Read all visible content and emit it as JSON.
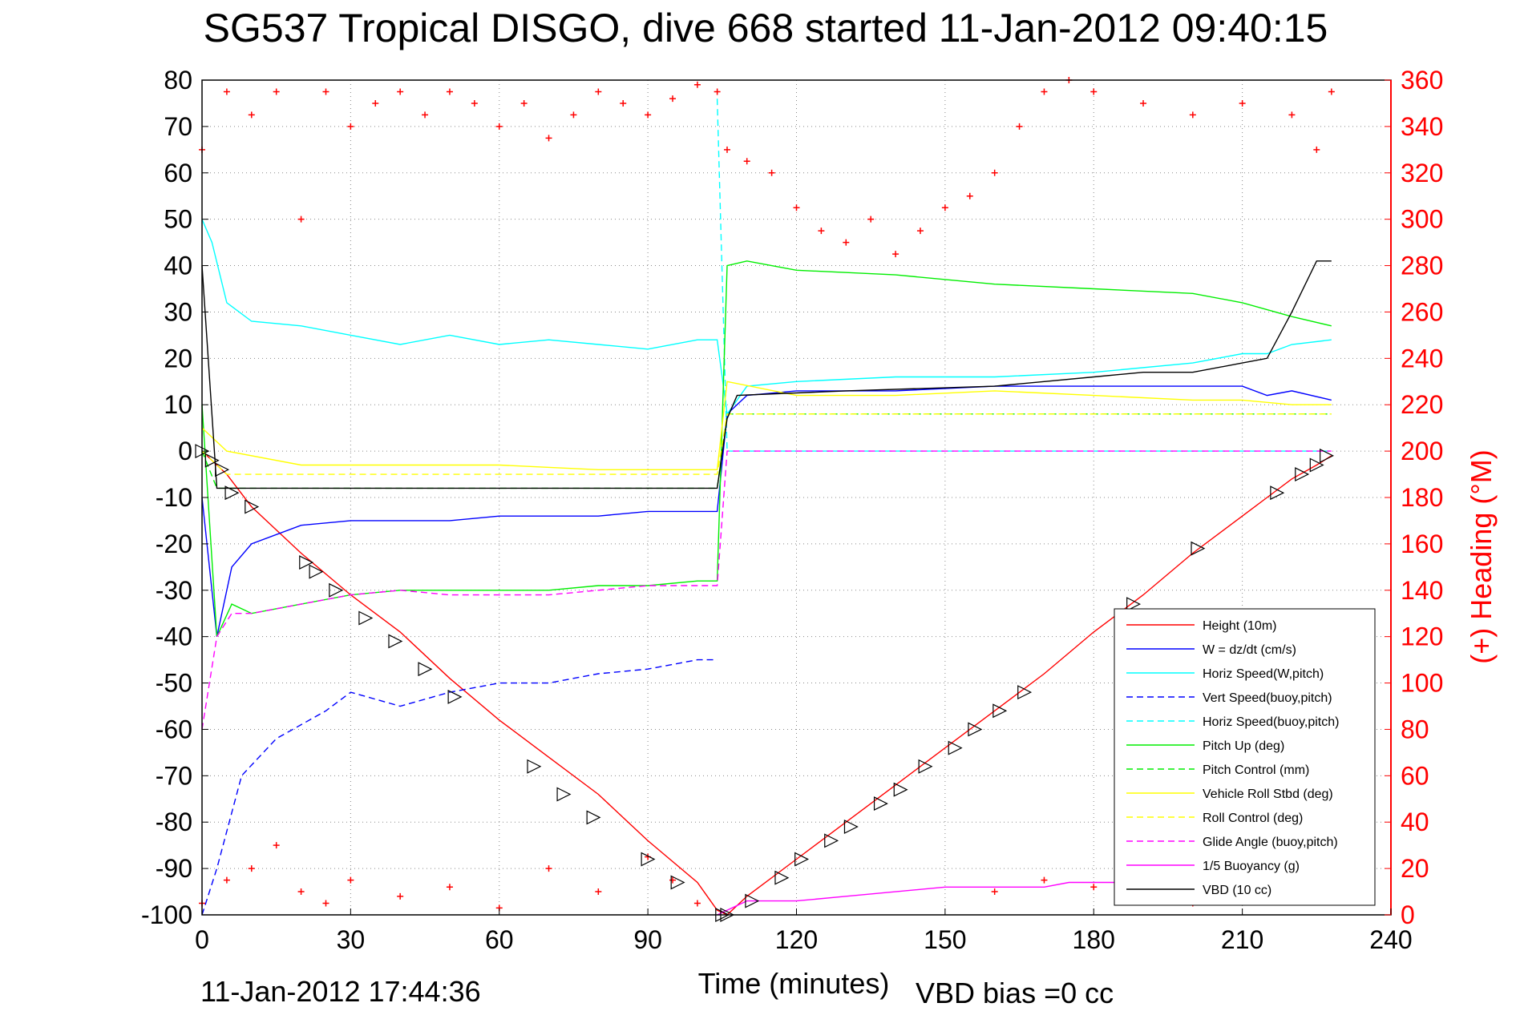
{
  "title": "SG537 Tropical DISGO, dive 668 started 11-Jan-2012 09:40:15",
  "footer_left": "11-Jan-2012 17:44:36",
  "footer_right": "VBD bias =0 cc",
  "chart_data": {
    "type": "line",
    "xlabel": "Time (minutes)",
    "ylabel": "",
    "y2label": "(+) Heading (°M)",
    "xlim": [
      0,
      240
    ],
    "ylim": [
      -100,
      80
    ],
    "y2lim": [
      0,
      360
    ],
    "xticks": [
      0,
      30,
      60,
      90,
      120,
      150,
      180,
      210,
      240
    ],
    "yticks": [
      80,
      70,
      60,
      50,
      40,
      30,
      20,
      10,
      0,
      -10,
      -20,
      -30,
      -40,
      -50,
      -60,
      -70,
      -80,
      -90,
      -100
    ],
    "y2ticks": [
      360,
      340,
      320,
      300,
      280,
      260,
      240,
      220,
      200,
      180,
      160,
      140,
      120,
      100,
      80,
      60,
      40,
      20,
      0
    ],
    "grid": true,
    "legend_position": "bottom-right",
    "colors": {
      "red": "#ff0000",
      "blue": "#0000ff",
      "cyan": "#00ffff",
      "green": "#00ee00",
      "yellow": "#ffff00",
      "magenta": "#ff00ff",
      "black": "#000000"
    },
    "series": [
      {
        "name": "Height (10m)",
        "color": "#ff0000",
        "dash": false,
        "x": [
          0,
          5,
          10,
          20,
          30,
          40,
          50,
          60,
          70,
          80,
          90,
          100,
          104,
          106,
          110,
          120,
          130,
          140,
          150,
          160,
          170,
          180,
          190,
          200,
          210,
          215,
          220,
          225,
          228
        ],
        "y": [
          0,
          -5,
          -12,
          -22,
          -31,
          -39,
          -49,
          -58,
          -66,
          -74,
          -84,
          -93,
          -99,
          -100,
          -96,
          -88,
          -80,
          -72,
          -64,
          -56,
          -48,
          -39,
          -31,
          -22,
          -14,
          -10,
          -6,
          -3,
          -1
        ]
      },
      {
        "name": "W = dz/dt (cm/s)",
        "color": "#0000ff",
        "dash": false,
        "x": [
          0,
          3,
          6,
          10,
          20,
          30,
          40,
          50,
          60,
          70,
          80,
          90,
          100,
          104,
          106,
          110,
          120,
          140,
          160,
          180,
          200,
          210,
          215,
          220,
          228
        ],
        "y": [
          -10,
          -40,
          -25,
          -20,
          -16,
          -15,
          -15,
          -15,
          -14,
          -14,
          -14,
          -13,
          -13,
          -13,
          8,
          12,
          13,
          13,
          14,
          14,
          14,
          14,
          12,
          13,
          11
        ]
      },
      {
        "name": "Horiz Speed(W,pitch)",
        "color": "#00ffff",
        "dash": false,
        "x": [
          0,
          2,
          5,
          10,
          20,
          30,
          40,
          50,
          60,
          70,
          80,
          90,
          100,
          104,
          106,
          110,
          120,
          140,
          160,
          180,
          200,
          210,
          215,
          220,
          228
        ],
        "y": [
          50,
          45,
          32,
          28,
          27,
          25,
          23,
          25,
          23,
          24,
          23,
          22,
          24,
          24,
          8,
          14,
          15,
          16,
          16,
          17,
          19,
          21,
          21,
          23,
          24
        ]
      },
      {
        "name": "Vert Speed(buoy,pitch)",
        "color": "#0000ff",
        "dash": true,
        "x": [
          0,
          3,
          8,
          15,
          25,
          30,
          40,
          50,
          60,
          70,
          80,
          90,
          100,
          104
        ],
        "y": [
          -100,
          -90,
          -70,
          -62,
          -56,
          -52,
          -55,
          -52,
          -50,
          -50,
          -48,
          -47,
          -45,
          -45
        ]
      },
      {
        "name": "Horiz Speed(buoy,pitch)",
        "color": "#00ffff",
        "dash": true,
        "x": [
          104,
          106,
          228
        ],
        "y": [
          76,
          0,
          0
        ]
      },
      {
        "name": "Pitch Up (deg)",
        "color": "#00ee00",
        "dash": false,
        "x": [
          0,
          3,
          6,
          10,
          20,
          30,
          40,
          50,
          60,
          70,
          80,
          90,
          100,
          104,
          106,
          110,
          120,
          140,
          160,
          180,
          200,
          210,
          220,
          228
        ],
        "y": [
          10,
          -40,
          -33,
          -35,
          -33,
          -31,
          -30,
          -30,
          -30,
          -30,
          -29,
          -29,
          -28,
          -28,
          40,
          41,
          39,
          38,
          36,
          35,
          34,
          32,
          29,
          27
        ]
      },
      {
        "name": "Pitch Control (mm)",
        "color": "#00ee00",
        "dash": true,
        "x": [
          0,
          3,
          104,
          106,
          228
        ],
        "y": [
          0,
          -8,
          -8,
          8,
          8
        ]
      },
      {
        "name": "Vehicle Roll Stbd (deg)",
        "color": "#ffff00",
        "dash": false,
        "x": [
          0,
          5,
          20,
          40,
          60,
          80,
          100,
          104,
          106,
          120,
          140,
          160,
          180,
          200,
          210,
          220,
          228
        ],
        "y": [
          5,
          0,
          -3,
          -3,
          -3,
          -4,
          -4,
          -4,
          15,
          12,
          12,
          13,
          12,
          11,
          11,
          10,
          10
        ]
      },
      {
        "name": "Roll Control (deg)",
        "color": "#ffff00",
        "dash": true,
        "x": [
          0,
          5,
          104,
          106,
          228
        ],
        "y": [
          0,
          -5,
          -5,
          8,
          8
        ]
      },
      {
        "name": "Glide Angle (buoy,pitch)",
        "color": "#ff00ff",
        "dash": true,
        "x": [
          0,
          3,
          6,
          10,
          20,
          30,
          40,
          50,
          60,
          70,
          80,
          90,
          100,
          104,
          106,
          228
        ],
        "y": [
          -60,
          -40,
          -35,
          -35,
          -33,
          -31,
          -30,
          -31,
          -31,
          -31,
          -30,
          -29,
          -29,
          -29,
          0,
          0
        ]
      },
      {
        "name": "1/5 Buoyancy (g)",
        "color": "#ff00ff",
        "dash": false,
        "x": [
          104,
          110,
          120,
          130,
          140,
          150,
          160,
          170,
          175,
          180,
          190
        ],
        "y": [
          -100,
          -97,
          -97,
          -96,
          -95,
          -94,
          -94,
          -94,
          -93,
          -93,
          -93
        ]
      },
      {
        "name": "VBD (10 cc)",
        "color": "#000000",
        "dash": false,
        "x": [
          0,
          3,
          104,
          106,
          108,
          130,
          160,
          170,
          180,
          190,
          200,
          210,
          215,
          220,
          225,
          228
        ],
        "y": [
          40,
          -8,
          -8,
          7,
          12,
          13,
          14,
          15,
          16,
          17,
          17,
          19,
          20,
          30,
          41,
          41
        ]
      }
    ],
    "heading": {
      "name": "(+) Heading",
      "color": "#ff0000",
      "marker": "+",
      "top_band": {
        "x": [
          0,
          5,
          10,
          15,
          20,
          25,
          30,
          35,
          40,
          45,
          50,
          55,
          60,
          65,
          70,
          75,
          80,
          85,
          90,
          95,
          100,
          104
        ],
        "y": [
          330,
          355,
          345,
          355,
          300,
          355,
          340,
          350,
          355,
          345,
          355,
          350,
          340,
          350,
          335,
          345,
          355,
          350,
          345,
          352,
          358,
          355
        ]
      },
      "descent_band": {
        "x": [
          106,
          110,
          115,
          120,
          125,
          130,
          135,
          140,
          145,
          150,
          155,
          160,
          165,
          170,
          175,
          180,
          190,
          200,
          210,
          220,
          225,
          228
        ],
        "y": [
          330,
          325,
          320,
          305,
          295,
          290,
          300,
          285,
          295,
          305,
          310,
          320,
          340,
          355,
          360,
          355,
          350,
          345,
          350,
          345,
          330,
          355
        ]
      },
      "bottom_band": {
        "x": [
          0,
          5,
          10,
          15,
          20,
          25,
          30,
          40,
          50,
          60,
          70,
          80,
          90,
          95,
          100,
          160,
          170,
          180,
          190,
          200
        ],
        "y": [
          5,
          15,
          20,
          30,
          10,
          5,
          15,
          8,
          12,
          3,
          20,
          10,
          25,
          15,
          5,
          10,
          15,
          12,
          8,
          5
        ]
      }
    },
    "markers": {
      "x": [
        0,
        2,
        4,
        6,
        10,
        21,
        23,
        27,
        33,
        39,
        45,
        51,
        67,
        73,
        79,
        90,
        96,
        105,
        106,
        111,
        117,
        121,
        127,
        131,
        137,
        141,
        146,
        152,
        156,
        161,
        166,
        188,
        201,
        217,
        222,
        225,
        227
      ],
      "y": [
        0,
        -2,
        -4,
        -9,
        -12,
        -24,
        -26,
        -30,
        -36,
        -41,
        -47,
        -53,
        -68,
        -74,
        -79,
        -88,
        -93,
        -100,
        -100,
        -97,
        -92,
        -88,
        -84,
        -81,
        -76,
        -73,
        -68,
        -64,
        -60,
        -56,
        -52,
        -33,
        -21,
        -9,
        -5,
        -3,
        -1
      ]
    }
  }
}
